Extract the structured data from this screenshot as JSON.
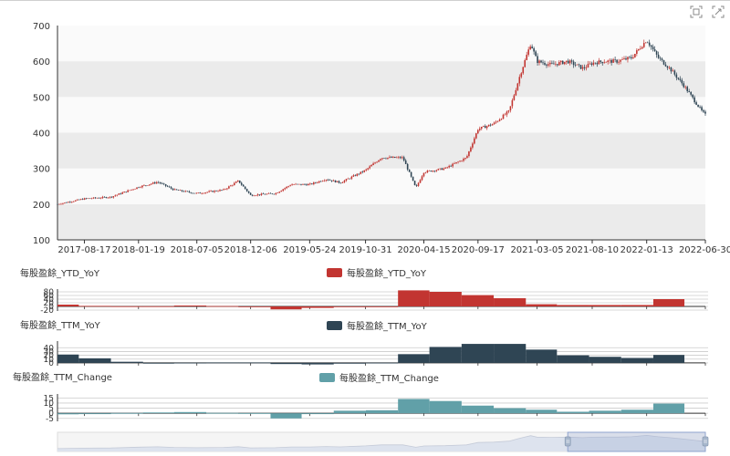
{
  "toolbox": {
    "zoom_icon": "data-zoom-icon",
    "reset_icon": "zoom-reset-icon"
  },
  "chart_data": [
    {
      "type": "candlestick",
      "x_ticks": [
        "2017-08-17",
        "2018-01-19",
        "2018-07-05",
        "2018-12-06",
        "2019-05-24",
        "2019-10-31",
        "2020-04-15",
        "2020-09-17",
        "2021-03-05",
        "2021-08-10",
        "2022-01-13",
        "2022-06-30"
      ],
      "y_ticks": [
        100,
        200,
        300,
        400,
        500,
        600,
        700
      ],
      "ylim": [
        100,
        700
      ],
      "up_color": "#c23531",
      "down_color": "#2f4554",
      "split_area": true,
      "close_trend": [
        [
          "2017-06-01",
          200
        ],
        [
          "2017-08-17",
          215
        ],
        [
          "2017-11-01",
          220
        ],
        [
          "2018-01-19",
          248
        ],
        [
          "2018-03-15",
          262
        ],
        [
          "2018-05-01",
          240
        ],
        [
          "2018-07-05",
          230
        ],
        [
          "2018-09-20",
          240
        ],
        [
          "2018-11-01",
          265
        ],
        [
          "2018-12-06",
          225
        ],
        [
          "2019-02-15",
          230
        ],
        [
          "2019-04-01",
          255
        ],
        [
          "2019-05-24",
          255
        ],
        [
          "2019-07-10",
          270
        ],
        [
          "2019-08-20",
          260
        ],
        [
          "2019-10-31",
          295
        ],
        [
          "2019-12-15",
          330
        ],
        [
          "2020-02-15",
          330
        ],
        [
          "2020-03-23",
          245
        ],
        [
          "2020-04-15",
          290
        ],
        [
          "2020-06-15",
          300
        ],
        [
          "2020-08-15",
          330
        ],
        [
          "2020-09-17",
          410
        ],
        [
          "2020-11-01",
          425
        ],
        [
          "2020-12-15",
          460
        ],
        [
          "2021-01-15",
          560
        ],
        [
          "2021-02-15",
          650
        ],
        [
          "2021-03-05",
          600
        ],
        [
          "2021-04-15",
          590
        ],
        [
          "2021-06-01",
          600
        ],
        [
          "2021-07-15",
          580
        ],
        [
          "2021-08-10",
          595
        ],
        [
          "2021-09-15",
          600
        ],
        [
          "2021-10-20",
          600
        ],
        [
          "2021-12-01",
          610
        ],
        [
          "2022-01-13",
          660
        ],
        [
          "2022-02-15",
          610
        ],
        [
          "2022-03-20",
          580
        ],
        [
          "2022-05-01",
          530
        ],
        [
          "2022-06-20",
          460
        ],
        [
          "2022-06-30",
          450
        ]
      ]
    },
    {
      "type": "bar",
      "legend": "每股盈餘_YTD_YoY",
      "title": "每股盈餘_YTD_YoY",
      "color": "#c23531",
      "y_ticks": [
        -20,
        0,
        20,
        40,
        60,
        80
      ],
      "ylim": [
        -20,
        90
      ],
      "series": [
        {
          "start": "2017-06-01",
          "end": "2017-08-01",
          "value": 10
        },
        {
          "start": "2017-08-01",
          "end": "2017-11-01",
          "value": 3
        },
        {
          "start": "2017-11-01",
          "end": "2018-02-01",
          "value": 1
        },
        {
          "start": "2018-02-01",
          "end": "2018-05-01",
          "value": 1
        },
        {
          "start": "2018-05-01",
          "end": "2018-08-01",
          "value": 5
        },
        {
          "start": "2018-08-01",
          "end": "2018-11-01",
          "value": 2
        },
        {
          "start": "2018-11-01",
          "end": "2019-02-01",
          "value": -2
        },
        {
          "start": "2019-02-01",
          "end": "2019-05-01",
          "value": -16
        },
        {
          "start": "2019-05-01",
          "end": "2019-08-01",
          "value": -8
        },
        {
          "start": "2019-08-01",
          "end": "2019-11-01",
          "value": -3
        },
        {
          "start": "2019-11-01",
          "end": "2020-02-01",
          "value": -1
        },
        {
          "start": "2020-02-01",
          "end": "2020-05-01",
          "value": 88
        },
        {
          "start": "2020-05-01",
          "end": "2020-08-01",
          "value": 80
        },
        {
          "start": "2020-08-01",
          "end": "2020-11-01",
          "value": 62
        },
        {
          "start": "2020-11-01",
          "end": "2021-02-01",
          "value": 45
        },
        {
          "start": "2021-02-01",
          "end": "2021-05-01",
          "value": 12
        },
        {
          "start": "2021-05-01",
          "end": "2021-08-01",
          "value": 8
        },
        {
          "start": "2021-08-01",
          "end": "2021-11-01",
          "value": 8
        },
        {
          "start": "2021-11-01",
          "end": "2022-02-01",
          "value": 8
        },
        {
          "start": "2022-02-01",
          "end": "2022-05-01",
          "value": 40
        }
      ]
    },
    {
      "type": "bar",
      "legend": "每股盈餘_TTM_YoY",
      "title": "每股盈餘_TTM_YoY",
      "color": "#2f4554",
      "y_ticks": [
        0,
        10,
        20,
        30,
        40
      ],
      "ylim": [
        -5,
        55
      ],
      "series": [
        {
          "start": "2017-06-01",
          "end": "2017-08-01",
          "value": 22
        },
        {
          "start": "2017-08-01",
          "end": "2017-11-01",
          "value": 12
        },
        {
          "start": "2017-11-01",
          "end": "2018-02-01",
          "value": 3
        },
        {
          "start": "2018-02-01",
          "end": "2018-05-01",
          "value": -1
        },
        {
          "start": "2018-05-01",
          "end": "2018-08-01",
          "value": 0.5
        },
        {
          "start": "2018-08-01",
          "end": "2018-11-01",
          "value": 1
        },
        {
          "start": "2018-11-01",
          "end": "2019-02-01",
          "value": 1
        },
        {
          "start": "2019-02-01",
          "end": "2019-05-01",
          "value": -3
        },
        {
          "start": "2019-05-01",
          "end": "2019-08-01",
          "value": -4
        },
        {
          "start": "2019-08-01",
          "end": "2019-11-01",
          "value": -2
        },
        {
          "start": "2019-11-01",
          "end": "2020-02-01",
          "value": 0.5
        },
        {
          "start": "2020-02-01",
          "end": "2020-05-01",
          "value": 23
        },
        {
          "start": "2020-05-01",
          "end": "2020-08-01",
          "value": 42
        },
        {
          "start": "2020-08-01",
          "end": "2020-11-01",
          "value": 50
        },
        {
          "start": "2020-11-01",
          "end": "2021-02-01",
          "value": 50
        },
        {
          "start": "2021-02-01",
          "end": "2021-05-01",
          "value": 35
        },
        {
          "start": "2021-05-01",
          "end": "2021-08-01",
          "value": 20
        },
        {
          "start": "2021-08-01",
          "end": "2021-11-01",
          "value": 16
        },
        {
          "start": "2021-11-01",
          "end": "2022-02-01",
          "value": 13
        },
        {
          "start": "2022-02-01",
          "end": "2022-05-01",
          "value": 21
        }
      ]
    },
    {
      "type": "bar",
      "legend": "每股盈餘_TTM_Change",
      "title": "每股盈餘_TTM_Change",
      "color": "#61a0a8",
      "y_ticks": [
        -5,
        0,
        5,
        10,
        15
      ],
      "ylim": [
        -7,
        18
      ],
      "series": [
        {
          "start": "2017-06-01",
          "end": "2017-08-01",
          "value": -1
        },
        {
          "start": "2017-08-01",
          "end": "2017-11-01",
          "value": -0.8
        },
        {
          "start": "2017-11-01",
          "end": "2018-02-01",
          "value": 0.3
        },
        {
          "start": "2018-02-01",
          "end": "2018-05-01",
          "value": 0.8
        },
        {
          "start": "2018-05-01",
          "end": "2018-08-01",
          "value": 1.2
        },
        {
          "start": "2018-08-01",
          "end": "2018-11-01",
          "value": 0.4
        },
        {
          "start": "2018-11-01",
          "end": "2019-02-01",
          "value": 0.2
        },
        {
          "start": "2019-02-01",
          "end": "2019-05-01",
          "value": -5
        },
        {
          "start": "2019-05-01",
          "end": "2019-08-01",
          "value": -0.8
        },
        {
          "start": "2019-08-01",
          "end": "2019-11-01",
          "value": 2.5
        },
        {
          "start": "2019-11-01",
          "end": "2020-02-01",
          "value": 3
        },
        {
          "start": "2020-02-01",
          "end": "2020-05-01",
          "value": 14
        },
        {
          "start": "2020-05-01",
          "end": "2020-08-01",
          "value": 12
        },
        {
          "start": "2020-08-01",
          "end": "2020-11-01",
          "value": 7.5
        },
        {
          "start": "2020-11-01",
          "end": "2021-02-01",
          "value": 5
        },
        {
          "start": "2021-02-01",
          "end": "2021-05-01",
          "value": 3.5
        },
        {
          "start": "2021-05-01",
          "end": "2021-08-01",
          "value": 1.5
        },
        {
          "start": "2021-08-01",
          "end": "2021-11-01",
          "value": 2.5
        },
        {
          "start": "2021-11-01",
          "end": "2022-02-01",
          "value": 3.5
        },
        {
          "start": "2022-02-01",
          "end": "2022-05-01",
          "value": 9.5
        }
      ]
    }
  ],
  "data_zoom": {
    "start_date": "2017-06-01",
    "end_date": "2022-06-30",
    "window_start": "2021-06-01",
    "window_end": "2022-06-30"
  }
}
